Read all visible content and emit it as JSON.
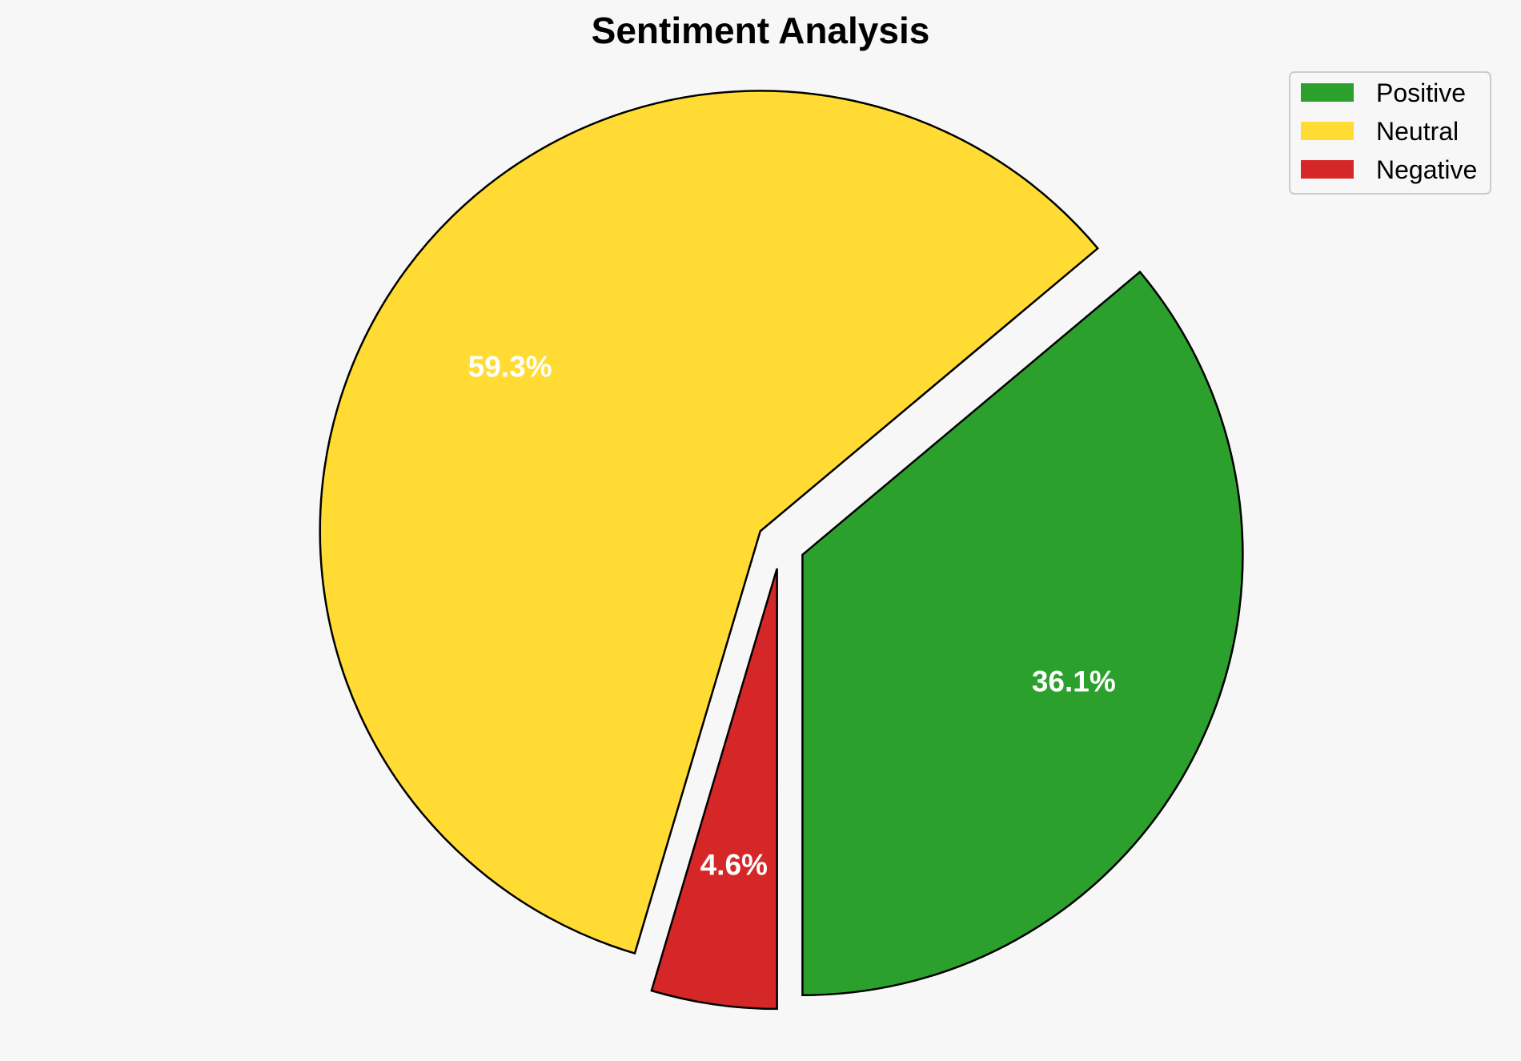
{
  "chart_data": {
    "type": "pie",
    "title": "Sentiment Analysis",
    "categories": [
      "Positive",
      "Neutral",
      "Negative"
    ],
    "values": [
      36.1,
      59.3,
      4.6
    ],
    "labels": [
      "36.1%",
      "59.3%",
      "4.6%"
    ],
    "colors": [
      "#2ca02c",
      "#ffdb33",
      "#d62728"
    ],
    "edge_color": "#000000",
    "start_angle_deg": 270,
    "direction": "counterclockwise",
    "exploded": true,
    "legend_position": "top-right"
  }
}
